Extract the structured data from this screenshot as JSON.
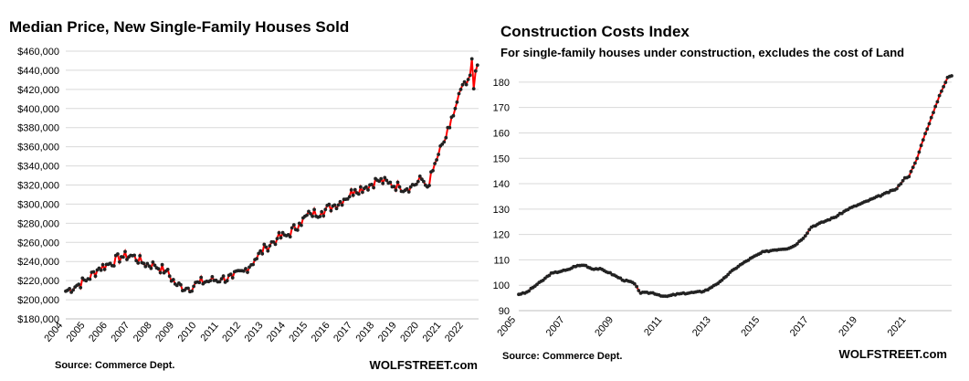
{
  "chart_data": [
    {
      "type": "line",
      "title": "Median Price, New Single-Family Houses Sold",
      "subtitle": "",
      "source": "Source: Commerce Dept.",
      "brand": "WOLFSTREET.com",
      "line_color": "#ff0000",
      "marker_color": "#222222",
      "grid": true,
      "ylim": [
        180000,
        460000
      ],
      "y_ticks": [
        180000,
        200000,
        220000,
        240000,
        260000,
        280000,
        300000,
        320000,
        340000,
        360000,
        380000,
        400000,
        420000,
        440000,
        460000
      ],
      "y_tick_labels": [
        "$180,000",
        "$200,000",
        "$220,000",
        "$240,000",
        "$260,000",
        "$280,000",
        "$300,000",
        "$320,000",
        "$340,000",
        "$360,000",
        "$380,000",
        "$400,000",
        "$420,000",
        "$440,000",
        "$460,000"
      ],
      "x_range": [
        2004.0,
        2022.55
      ],
      "x_ticks": [
        2004,
        2005,
        2006,
        2007,
        2008,
        2009,
        2010,
        2011,
        2012,
        2013,
        2014,
        2015,
        2016,
        2017,
        2018,
        2019,
        2020,
        2021,
        2022
      ],
      "x_tick_labels": [
        "2004",
        "2005",
        "2006",
        "2007",
        "2008",
        "2009",
        "2010",
        "2011",
        "2012",
        "2013",
        "2014",
        "2015",
        "2016",
        "2017",
        "2018",
        "2019",
        "2020",
        "2021",
        "2022"
      ],
      "anchors": [
        [
          2004.0,
          209000
        ],
        [
          2004.5,
          215000
        ],
        [
          2005.0,
          222000
        ],
        [
          2005.5,
          233000
        ],
        [
          2006.0,
          238000
        ],
        [
          2006.5,
          245000
        ],
        [
          2007.0,
          246000
        ],
        [
          2007.5,
          238000
        ],
        [
          2008.0,
          236000
        ],
        [
          2008.5,
          230000
        ],
        [
          2009.0,
          215000
        ],
        [
          2009.5,
          212000
        ],
        [
          2010.0,
          218000
        ],
        [
          2010.5,
          220000
        ],
        [
          2011.0,
          222000
        ],
        [
          2011.5,
          223000
        ],
        [
          2012.0,
          230000
        ],
        [
          2012.5,
          242000
        ],
        [
          2013.0,
          255000
        ],
        [
          2013.5,
          264000
        ],
        [
          2014.0,
          268000
        ],
        [
          2014.5,
          280000
        ],
        [
          2015.0,
          290000
        ],
        [
          2015.5,
          292000
        ],
        [
          2016.0,
          298000
        ],
        [
          2016.5,
          305000
        ],
        [
          2017.0,
          315000
        ],
        [
          2017.5,
          318000
        ],
        [
          2018.0,
          325000
        ],
        [
          2018.5,
          322000
        ],
        [
          2019.0,
          318000
        ],
        [
          2019.5,
          318000
        ],
        [
          2020.0,
          326000
        ],
        [
          2020.25,
          318000
        ],
        [
          2020.5,
          335000
        ],
        [
          2020.75,
          352000
        ],
        [
          2021.0,
          365000
        ],
        [
          2021.25,
          380000
        ],
        [
          2021.5,
          400000
        ],
        [
          2021.75,
          420000
        ],
        [
          2022.0,
          425000
        ],
        [
          2022.17,
          435000
        ],
        [
          2022.25,
          452000
        ],
        [
          2022.33,
          420000
        ],
        [
          2022.42,
          440000
        ]
      ]
    },
    {
      "type": "line",
      "title": "Construction  Costs Index",
      "subtitle": "For single-family houses under construction, excludes the cost of Land",
      "source": "Source: Commerce Dept.",
      "brand": "WOLFSTREET.com",
      "line_color": "#ff0000",
      "marker_color": "#222222",
      "grid": true,
      "ylim": [
        90,
        185
      ],
      "y_ticks": [
        90,
        100,
        110,
        120,
        130,
        140,
        150,
        160,
        170,
        180
      ],
      "y_tick_labels": [
        "90",
        "100",
        "110",
        "120",
        "130",
        "140",
        "150",
        "160",
        "170",
        "180"
      ],
      "x_range": [
        2005.0,
        2022.75
      ],
      "x_ticks": [
        2005,
        2007,
        2009,
        2011,
        2013,
        2015,
        2017,
        2019,
        2021
      ],
      "x_tick_labels": [
        "2005",
        "2007",
        "2009",
        "2011",
        "2013",
        "2015",
        "2017",
        "2019",
        "2021"
      ],
      "anchors": [
        [
          2005.0,
          96.5
        ],
        [
          2005.3,
          97.0
        ],
        [
          2005.7,
          100.0
        ],
        [
          2006.0,
          102.0
        ],
        [
          2006.3,
          104.5
        ],
        [
          2006.7,
          105.5
        ],
        [
          2007.0,
          106.0
        ],
        [
          2007.3,
          107.5
        ],
        [
          2007.7,
          108.0
        ],
        [
          2008.0,
          106.5
        ],
        [
          2008.3,
          106.5
        ],
        [
          2008.7,
          105.0
        ],
        [
          2009.0,
          103.5
        ],
        [
          2009.3,
          102.0
        ],
        [
          2009.7,
          101.0
        ],
        [
          2010.0,
          97.0
        ],
        [
          2010.5,
          97.0
        ],
        [
          2011.0,
          95.5
        ],
        [
          2011.5,
          96.5
        ],
        [
          2012.0,
          97.0
        ],
        [
          2012.5,
          97.5
        ],
        [
          2012.8,
          98.5
        ],
        [
          2013.0,
          100.0
        ],
        [
          2013.3,
          101.5
        ],
        [
          2013.6,
          104.5
        ],
        [
          2014.0,
          107.5
        ],
        [
          2014.5,
          110.5
        ],
        [
          2015.0,
          113.0
        ],
        [
          2015.5,
          114.0
        ],
        [
          2016.0,
          114.5
        ],
        [
          2016.3,
          115.5
        ],
        [
          2016.7,
          119.0
        ],
        [
          2017.0,
          123.0
        ],
        [
          2017.5,
          125.0
        ],
        [
          2018.0,
          127.0
        ],
        [
          2018.5,
          130.0
        ],
        [
          2019.0,
          132.0
        ],
        [
          2019.5,
          134.0
        ],
        [
          2020.0,
          136.0
        ],
        [
          2020.5,
          138.0
        ],
        [
          2020.8,
          142.0
        ],
        [
          2021.0,
          143.0
        ],
        [
          2021.3,
          149.0
        ],
        [
          2021.6,
          158.0
        ],
        [
          2022.0,
          168.0
        ],
        [
          2022.3,
          176.0
        ],
        [
          2022.6,
          182.0
        ],
        [
          2022.75,
          182.5
        ]
      ]
    }
  ]
}
